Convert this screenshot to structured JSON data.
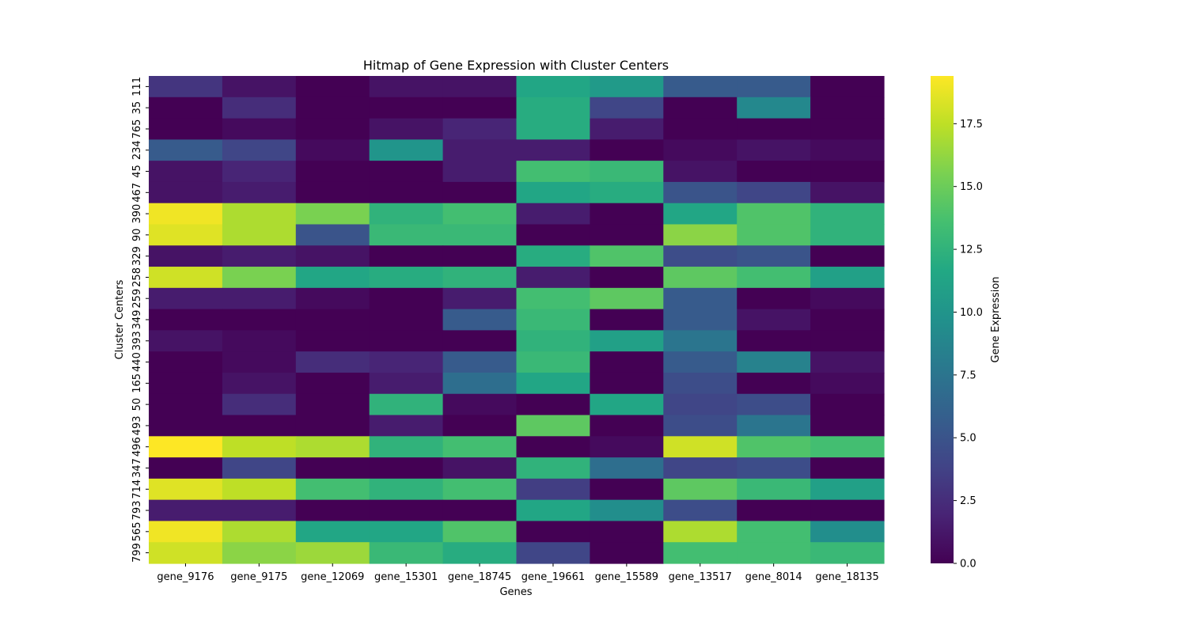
{
  "chart_data": {
    "type": "heatmap",
    "title": "Hitmap of Gene Expression with Cluster Centers",
    "xlabel": "Genes",
    "ylabel": "Cluster Centers",
    "colorbar_label": "Gene Expression",
    "colormap": "viridis",
    "vmin": 0.0,
    "vmax": 19.4,
    "colorbar_ticks": [
      "0.0",
      "2.5",
      "5.0",
      "7.5",
      "10.0",
      "12.5",
      "15.0",
      "17.5"
    ],
    "columns": [
      "gene_9176",
      "gene_9175",
      "gene_12069",
      "gene_15301",
      "gene_18745",
      "gene_19661",
      "gene_15589",
      "gene_13517",
      "gene_8014",
      "gene_18135"
    ],
    "rows": [
      "111",
      "35",
      "765",
      "234",
      "45",
      "467",
      "390",
      "90",
      "329",
      "258",
      "259",
      "349",
      "393",
      "440",
      "165",
      "50",
      "493",
      "496",
      "347",
      "714",
      "793",
      "565",
      "799"
    ],
    "values": [
      [
        3.0,
        1.0,
        0.0,
        1.0,
        1.0,
        11.5,
        10.5,
        5.5,
        5.5,
        0.0
      ],
      [
        0.0,
        2.5,
        0.0,
        0.0,
        0.0,
        12.0,
        4.0,
        0.0,
        9.0,
        0.0
      ],
      [
        0.0,
        0.5,
        0.0,
        1.0,
        2.0,
        12.0,
        1.5,
        0.0,
        0.0,
        0.0
      ],
      [
        5.5,
        4.0,
        0.5,
        10.0,
        1.5,
        1.5,
        0.0,
        0.5,
        1.0,
        0.5
      ],
      [
        1.0,
        2.0,
        0.0,
        0.0,
        1.5,
        13.5,
        13.0,
        1.0,
        0.0,
        0.0
      ],
      [
        1.0,
        1.5,
        0.0,
        0.0,
        0.0,
        11.5,
        12.0,
        5.0,
        4.0,
        1.0
      ],
      [
        19.0,
        17.0,
        15.5,
        12.5,
        13.5,
        1.5,
        0.0,
        11.5,
        14.0,
        12.5
      ],
      [
        18.5,
        17.0,
        5.0,
        13.0,
        13.0,
        0.0,
        0.0,
        16.0,
        14.0,
        12.5
      ],
      [
        1.0,
        1.5,
        1.0,
        0.0,
        0.0,
        12.0,
        14.0,
        4.5,
        5.0,
        0.0
      ],
      [
        18.0,
        15.5,
        11.5,
        12.0,
        12.5,
        1.5,
        0.0,
        14.5,
        13.5,
        11.0
      ],
      [
        1.5,
        1.5,
        0.5,
        0.0,
        1.5,
        13.5,
        14.5,
        5.5,
        0.0,
        0.5
      ],
      [
        0.0,
        0.0,
        0.0,
        0.0,
        5.5,
        13.0,
        0.0,
        5.5,
        1.0,
        0.0
      ],
      [
        1.0,
        0.5,
        0.0,
        0.0,
        0.0,
        12.5,
        11.0,
        7.5,
        0.0,
        0.0
      ],
      [
        0.0,
        0.5,
        2.5,
        2.0,
        5.5,
        13.0,
        0.0,
        5.5,
        8.5,
        1.0
      ],
      [
        0.0,
        1.0,
        0.0,
        1.5,
        7.0,
        11.5,
        0.0,
        4.5,
        0.0,
        0.5
      ],
      [
        0.0,
        2.5,
        0.0,
        12.5,
        0.5,
        0.0,
        11.5,
        4.0,
        4.5,
        0.0
      ],
      [
        0.0,
        0.0,
        0.0,
        1.5,
        0.0,
        14.5,
        0.0,
        4.5,
        7.5,
        0.0
      ],
      [
        19.4,
        17.5,
        17.0,
        12.5,
        13.5,
        0.0,
        0.5,
        18.0,
        14.0,
        13.5
      ],
      [
        0.0,
        4.0,
        0.0,
        0.0,
        1.0,
        12.5,
        7.0,
        4.0,
        4.5,
        0.0
      ],
      [
        18.5,
        17.5,
        13.5,
        12.5,
        13.5,
        3.5,
        0.0,
        14.5,
        13.0,
        11.0
      ],
      [
        1.5,
        1.5,
        0.0,
        0.0,
        0.0,
        11.5,
        9.5,
        4.5,
        0.0,
        0.0
      ],
      [
        19.0,
        17.0,
        11.5,
        11.5,
        14.0,
        0.0,
        0.0,
        17.0,
        13.5,
        9.5
      ],
      [
        18.0,
        16.0,
        16.5,
        13.0,
        12.0,
        4.0,
        0.0,
        13.5,
        13.5,
        13.0
      ]
    ]
  }
}
